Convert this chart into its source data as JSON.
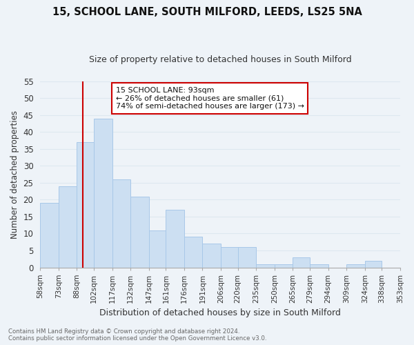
{
  "title": "15, SCHOOL LANE, SOUTH MILFORD, LEEDS, LS25 5NA",
  "subtitle": "Size of property relative to detached houses in South Milford",
  "xlabel": "Distribution of detached houses by size in South Milford",
  "ylabel": "Number of detached properties",
  "footnote1": "Contains HM Land Registry data © Crown copyright and database right 2024.",
  "footnote2": "Contains public sector information licensed under the Open Government Licence v3.0.",
  "annotation_title": "15 SCHOOL LANE: 93sqm",
  "annotation_line1": "← 26% of detached houses are smaller (61)",
  "annotation_line2": "74% of semi-detached houses are larger (173) →",
  "subject_value": 93,
  "bar_left_edges": [
    58,
    73,
    88,
    102,
    117,
    132,
    147,
    161,
    176,
    191,
    206,
    220,
    235,
    250,
    265,
    279,
    294,
    309,
    324,
    338
  ],
  "bar_widths": [
    15,
    15,
    14,
    15,
    15,
    15,
    14,
    15,
    15,
    15,
    14,
    15,
    15,
    15,
    14,
    15,
    15,
    15,
    14,
    15
  ],
  "bar_heights": [
    19,
    24,
    37,
    44,
    26,
    21,
    11,
    17,
    9,
    7,
    6,
    6,
    1,
    1,
    3,
    1,
    0,
    1,
    2,
    0
  ],
  "bar_color": "#ccdff2",
  "bar_edge_color": "#a8c8e8",
  "subject_line_color": "#cc0000",
  "annotation_box_color": "#ffffff",
  "annotation_box_edge": "#cc0000",
  "grid_color": "#dde8f0",
  "background_color": "#eef3f8",
  "ylim": [
    0,
    55
  ],
  "yticks": [
    0,
    5,
    10,
    15,
    20,
    25,
    30,
    35,
    40,
    45,
    50,
    55
  ]
}
